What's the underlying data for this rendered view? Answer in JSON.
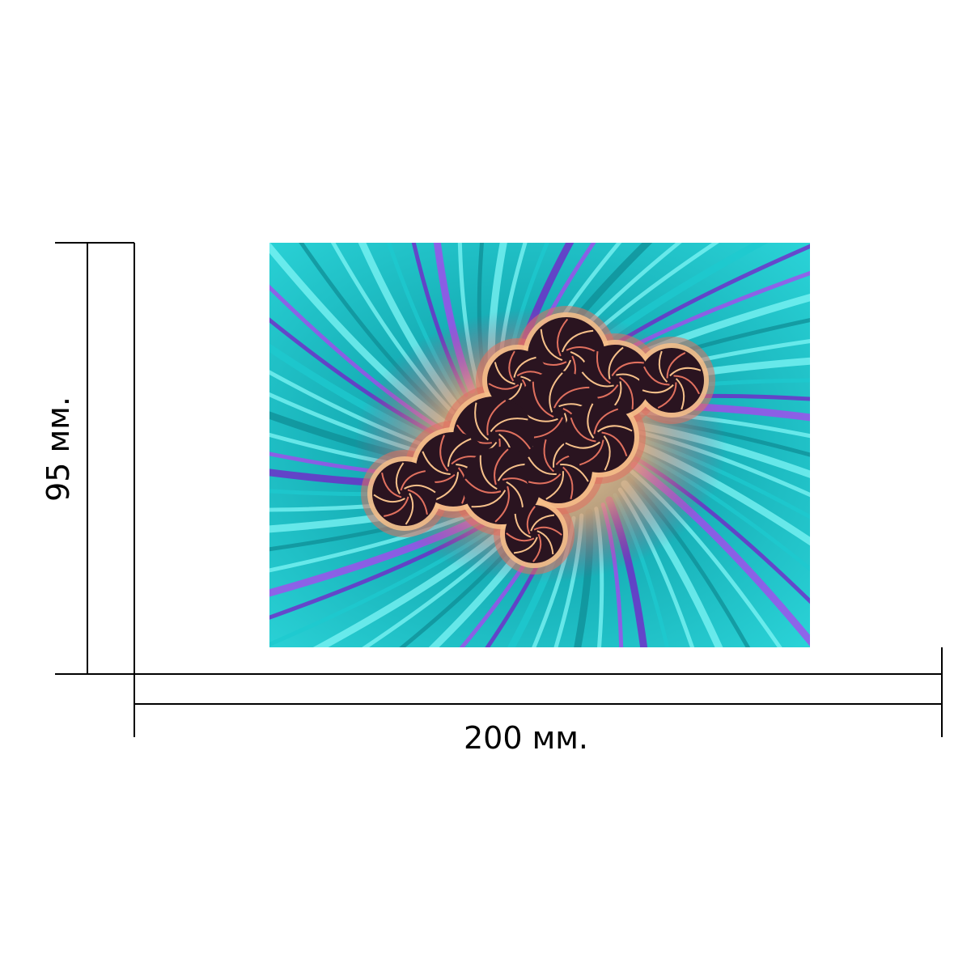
{
  "dimensions": {
    "width_label": "200 мм.",
    "height_label": "95 мм."
  },
  "artwork": {
    "subject": "fractal-swirl",
    "colors": {
      "background": "#ffffff",
      "teal": "#1ec9cf",
      "cyan_light": "#7ff5f5",
      "teal_dark": "#0f8d96",
      "purple": "#7a1cc9",
      "violet": "#b040f0",
      "peach": "#f6c08a",
      "coral": "#e0705e",
      "core_dark": "#2a1420"
    }
  }
}
